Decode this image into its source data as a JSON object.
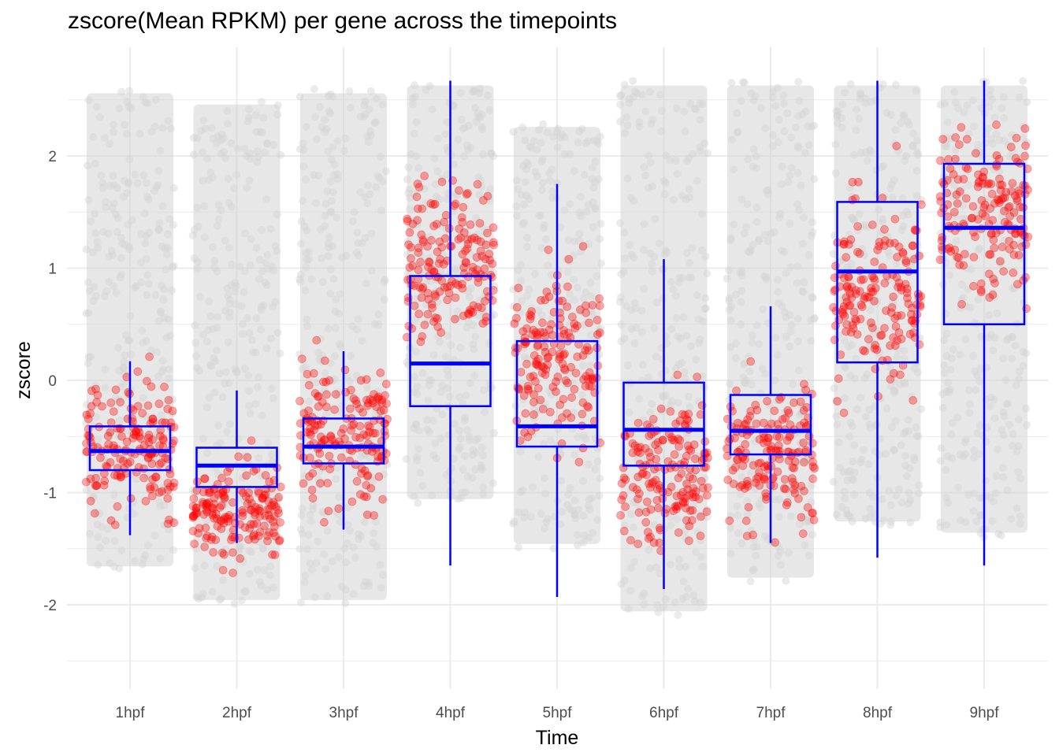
{
  "chart_data": {
    "type": "boxplot-jitter",
    "title": "zscore(Mean RPKM) per gene across the timepoints",
    "xlabel": "Time",
    "ylabel": "zscore",
    "categories": [
      "1hpf",
      "2hpf",
      "3hpf",
      "4hpf",
      "5hpf",
      "6hpf",
      "7hpf",
      "8hpf",
      "9hpf"
    ],
    "ylim": [
      -2.6,
      2.9
    ],
    "yticks": [
      -2,
      -1,
      0,
      1,
      2
    ],
    "grid": true,
    "colors": {
      "background_points": "#d3d3d3",
      "highlight_points": "#ff0000",
      "box": "#0000ff",
      "grid": "#ebebeb"
    },
    "boxes": [
      {
        "category": "1hpf",
        "whisker_low": -1.38,
        "q1": -0.8,
        "median": -0.63,
        "q3": -0.41,
        "whisker_high": 0.17
      },
      {
        "category": "2hpf",
        "whisker_low": -1.45,
        "q1": -0.95,
        "median": -0.76,
        "q3": -0.6,
        "whisker_high": -0.09
      },
      {
        "category": "3hpf",
        "whisker_low": -1.33,
        "q1": -0.74,
        "median": -0.59,
        "q3": -0.34,
        "whisker_high": 0.26
      },
      {
        "category": "4hpf",
        "whisker_low": -1.65,
        "q1": -0.23,
        "median": 0.15,
        "q3": 0.93,
        "whisker_high": 2.67
      },
      {
        "category": "5hpf",
        "whisker_low": -1.93,
        "q1": -0.59,
        "median": -0.41,
        "q3": 0.35,
        "whisker_high": 1.75
      },
      {
        "category": "6hpf",
        "whisker_low": -1.86,
        "q1": -0.76,
        "median": -0.44,
        "q3": -0.02,
        "whisker_high": 1.08
      },
      {
        "category": "7hpf",
        "whisker_low": -1.45,
        "q1": -0.66,
        "median": -0.45,
        "q3": -0.13,
        "whisker_high": 0.66
      },
      {
        "category": "8hpf",
        "whisker_low": -1.58,
        "q1": 0.16,
        "median": 0.97,
        "q3": 1.59,
        "whisker_high": 2.67
      },
      {
        "category": "9hpf",
        "whisker_low": -1.65,
        "q1": 0.5,
        "median": 1.36,
        "q3": 1.93,
        "whisker_high": 2.67
      }
    ],
    "background_clouds": [
      {
        "category": "1hpf",
        "range": [
          -1.7,
          2.6
        ]
      },
      {
        "category": "2hpf",
        "range": [
          -2.0,
          2.5
        ]
      },
      {
        "category": "3hpf",
        "range": [
          -2.0,
          2.6
        ]
      },
      {
        "category": "4hpf",
        "range": [
          -1.1,
          2.67
        ]
      },
      {
        "category": "5hpf",
        "range": [
          -1.5,
          2.3
        ]
      },
      {
        "category": "6hpf",
        "range": [
          -2.1,
          2.67
        ]
      },
      {
        "category": "7hpf",
        "range": [
          -1.8,
          2.67
        ]
      },
      {
        "category": "8hpf",
        "range": [
          -1.3,
          2.67
        ]
      },
      {
        "category": "9hpf",
        "range": [
          -1.4,
          2.67
        ]
      }
    ],
    "highlight_clouds": [
      {
        "category": "1hpf",
        "center": -0.55,
        "spread": 0.28
      },
      {
        "category": "2hpf",
        "center": -1.15,
        "spread": 0.18
      },
      {
        "category": "3hpf",
        "center": -0.5,
        "spread": 0.3
      },
      {
        "category": "4hpf",
        "center": 1.05,
        "spread": 0.35
      },
      {
        "category": "5hpf",
        "center": 0.2,
        "spread": 0.35
      },
      {
        "category": "6hpf",
        "center": -0.85,
        "spread": 0.35
      },
      {
        "category": "7hpf",
        "center": -0.65,
        "spread": 0.3
      },
      {
        "category": "8hpf",
        "center": 0.75,
        "spread": 0.35
      },
      {
        "category": "9hpf",
        "center": 1.5,
        "spread": 0.38
      }
    ]
  }
}
